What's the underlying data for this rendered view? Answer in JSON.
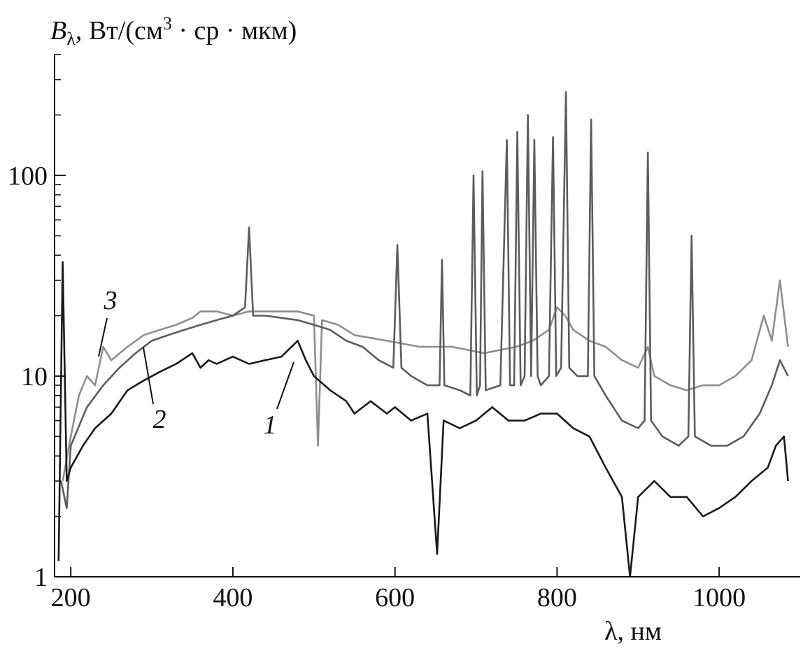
{
  "chart_data": {
    "type": "line",
    "ylabel": {
      "symbol": "B",
      "subscript": "λ",
      "text": ", Вт/(см",
      "superscript": "3",
      "end": " · ср · мкм)"
    },
    "xlabel": "λ, нм",
    "xlim": [
      180,
      1100
    ],
    "xticks": [
      200,
      400,
      600,
      800,
      1000
    ],
    "ylim": [
      1,
      400
    ],
    "yticks": [
      1,
      10,
      100
    ],
    "log_y": true,
    "minor_ticks": true,
    "grid": false,
    "series": [
      {
        "name": "1",
        "color": "#1a1a1a",
        "x": [
          185,
          190,
          195,
          200,
          215,
          230,
          250,
          270,
          290,
          310,
          330,
          350,
          360,
          370,
          380,
          400,
          420,
          440,
          460,
          480,
          490,
          500,
          520,
          540,
          550,
          570,
          590,
          600,
          620,
          640,
          652,
          660,
          680,
          700,
          720,
          740,
          760,
          780,
          800,
          820,
          840,
          860,
          880,
          890,
          900,
          920,
          940,
          960,
          980,
          1000,
          1020,
          1040,
          1060,
          1070,
          1080,
          1085
        ],
        "values": [
          1.2,
          37,
          3,
          3.5,
          4.5,
          5.5,
          6.5,
          8.5,
          9.5,
          10.5,
          11.5,
          13,
          11,
          12,
          11.5,
          12.5,
          11.5,
          12,
          12.5,
          15,
          12,
          10,
          8.5,
          7.5,
          6.5,
          7.5,
          6.5,
          7,
          6,
          6.5,
          1.3,
          6,
          5.5,
          6,
          7,
          6,
          6,
          6.5,
          6.5,
          5.5,
          5,
          3.5,
          2.5,
          1,
          2.5,
          3,
          2.5,
          2.5,
          2,
          2.2,
          2.5,
          3,
          3.5,
          4.5,
          5,
          3
        ]
      },
      {
        "name": "2",
        "color": "#5c5c5c",
        "x": [
          188,
          195,
          200,
          220,
          240,
          260,
          280,
          300,
          320,
          340,
          360,
          380,
          400,
          415,
          420,
          425,
          440,
          460,
          480,
          500,
          520,
          540,
          560,
          580,
          598,
          603,
          608,
          620,
          640,
          655,
          658,
          661,
          680,
          693,
          697,
          701,
          705,
          708,
          712,
          730,
          738,
          742,
          747,
          751,
          755,
          760,
          764,
          768,
          772,
          776,
          780,
          790,
          795,
          799,
          805,
          811,
          815,
          825,
          838,
          842,
          846,
          860,
          880,
          900,
          908,
          912,
          916,
          930,
          950,
          962,
          966,
          970,
          990,
          1010,
          1030,
          1050,
          1065,
          1075,
          1085
        ],
        "values": [
          3,
          2.2,
          4.5,
          7,
          9,
          11,
          13,
          15,
          16,
          17,
          18,
          19,
          20,
          22,
          55,
          20,
          20,
          19.5,
          19,
          18,
          17,
          15,
          14,
          12,
          11,
          45,
          11,
          10,
          9,
          9,
          38,
          9,
          8.5,
          8,
          100,
          8,
          9,
          105,
          8.5,
          9,
          150,
          9,
          9,
          165,
          9,
          10,
          200,
          10,
          150,
          10,
          9,
          10,
          155,
          10,
          11,
          260,
          11,
          10,
          10,
          190,
          10,
          8,
          6,
          5.5,
          6,
          130,
          6,
          5,
          4.5,
          5,
          50,
          5,
          4.5,
          4.5,
          5,
          6.5,
          9,
          12,
          10
        ]
      },
      {
        "name": "3",
        "color": "#8e8e8e",
        "x": [
          190,
          200,
          210,
          220,
          230,
          240,
          250,
          270,
          290,
          310,
          330,
          350,
          360,
          380,
          400,
          420,
          440,
          460,
          480,
          500,
          505,
          510,
          530,
          550,
          570,
          590,
          610,
          630,
          650,
          670,
          690,
          710,
          730,
          750,
          770,
          790,
          800,
          810,
          820,
          840,
          860,
          880,
          900,
          912,
          920,
          940,
          960,
          980,
          1000,
          1020,
          1040,
          1055,
          1065,
          1075,
          1085
        ],
        "values": [
          3,
          5,
          8,
          10,
          9,
          14,
          12,
          14,
          16,
          17,
          18,
          19.5,
          21,
          21,
          20,
          21,
          21,
          21,
          21,
          20,
          4.5,
          19,
          18,
          16,
          15.5,
          15,
          14.5,
          14,
          14,
          14,
          13.5,
          13,
          13.5,
          14,
          15,
          17,
          22,
          20,
          17,
          15,
          14,
          12,
          11,
          14,
          10,
          9,
          8.5,
          9,
          9,
          10,
          12,
          20,
          15,
          30,
          14
        ]
      }
    ]
  }
}
